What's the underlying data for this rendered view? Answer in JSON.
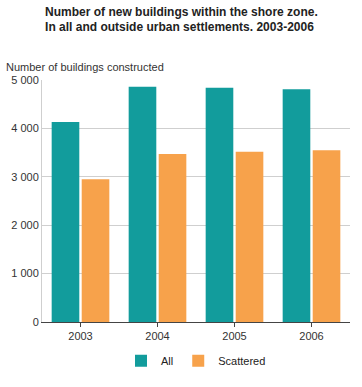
{
  "chart_data": {
    "type": "bar",
    "title": "Number of new buildings within the shore zone.\nIn all and outside urban settlements. 2003-2006",
    "ylabel": "Number of buildings constructed",
    "categories": [
      "2003",
      "2004",
      "2005",
      "2006"
    ],
    "series": [
      {
        "name": "All",
        "color": "#129c9c",
        "values": [
          4130,
          4860,
          4840,
          4810
        ]
      },
      {
        "name": "Scattered",
        "color": "#f7a24b",
        "values": [
          2950,
          3470,
          3520,
          3550
        ]
      }
    ],
    "ylim": [
      0,
      5000
    ],
    "yticks": [
      0,
      {
        "value": 1000,
        "label": "1 000"
      },
      {
        "value": 2000,
        "label": "2 000"
      },
      {
        "value": 3000,
        "label": "3 000"
      },
      {
        "value": 4000,
        "label": "4 000"
      },
      {
        "value": 5000,
        "label": "5 000"
      }
    ],
    "grid": true,
    "legend": "bottom"
  }
}
